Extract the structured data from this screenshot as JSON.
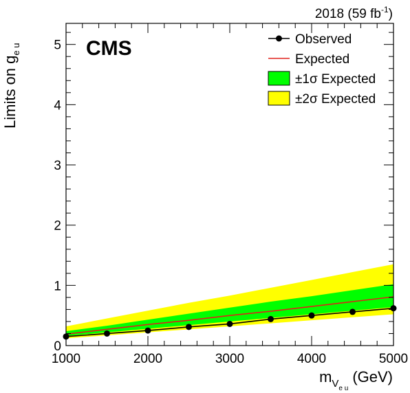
{
  "chart_data": {
    "type": "line",
    "experiment_label": "CMS",
    "lumi_label": "2018 (59 fb",
    "lumi_label_sup": "-1",
    "lumi_label_close": ")",
    "ylabel": "Limits on g",
    "ylabel_sub": "e u",
    "xlabel": "m",
    "xlabel_sub": "V",
    "xlabel_subsub": "e u",
    "xlabel_unit": "(GeV)",
    "xlim": [
      1000,
      5000
    ],
    "ylim": [
      0,
      5.35
    ],
    "x_ticks": [
      1000,
      2000,
      3000,
      4000,
      5000
    ],
    "x_tick_labels": [
      "1000",
      "2000",
      "3000",
      "4000",
      "5000"
    ],
    "y_ticks": [
      0,
      1,
      2,
      3,
      4,
      5
    ],
    "y_tick_labels": [
      "0",
      "1",
      "2",
      "3",
      "4",
      "5"
    ],
    "x_minor_step": 200,
    "y_minor_step": 0.2,
    "legend_position": "top-right",
    "legend": {
      "observed": "Observed",
      "expected": "Expected",
      "band1": "±1σ Expected",
      "band2": "±2σ Expected"
    },
    "colors": {
      "observed": "#000000",
      "expected": "#e0201a",
      "band1": "#00ff00",
      "band2": "#ffff00"
    },
    "x": [
      1000,
      1500,
      2000,
      2500,
      3000,
      3500,
      4000,
      4500,
      5000
    ],
    "observed": [
      0.15,
      0.2,
      0.25,
      0.31,
      0.36,
      0.44,
      0.5,
      0.56,
      0.62
    ],
    "expected": [
      0.19,
      0.27,
      0.35,
      0.42,
      0.5,
      0.57,
      0.65,
      0.73,
      0.81
    ],
    "band1_low": [
      0.16,
      0.22,
      0.28,
      0.34,
      0.4,
      0.46,
      0.52,
      0.58,
      0.64
    ],
    "band1_high": [
      0.24,
      0.33,
      0.43,
      0.53,
      0.63,
      0.73,
      0.82,
      0.92,
      1.02
    ],
    "band2_low": [
      0.12,
      0.17,
      0.22,
      0.27,
      0.32,
      0.37,
      0.42,
      0.47,
      0.52
    ],
    "band2_high": [
      0.32,
      0.45,
      0.58,
      0.71,
      0.83,
      0.96,
      1.09,
      1.22,
      1.35
    ]
  }
}
